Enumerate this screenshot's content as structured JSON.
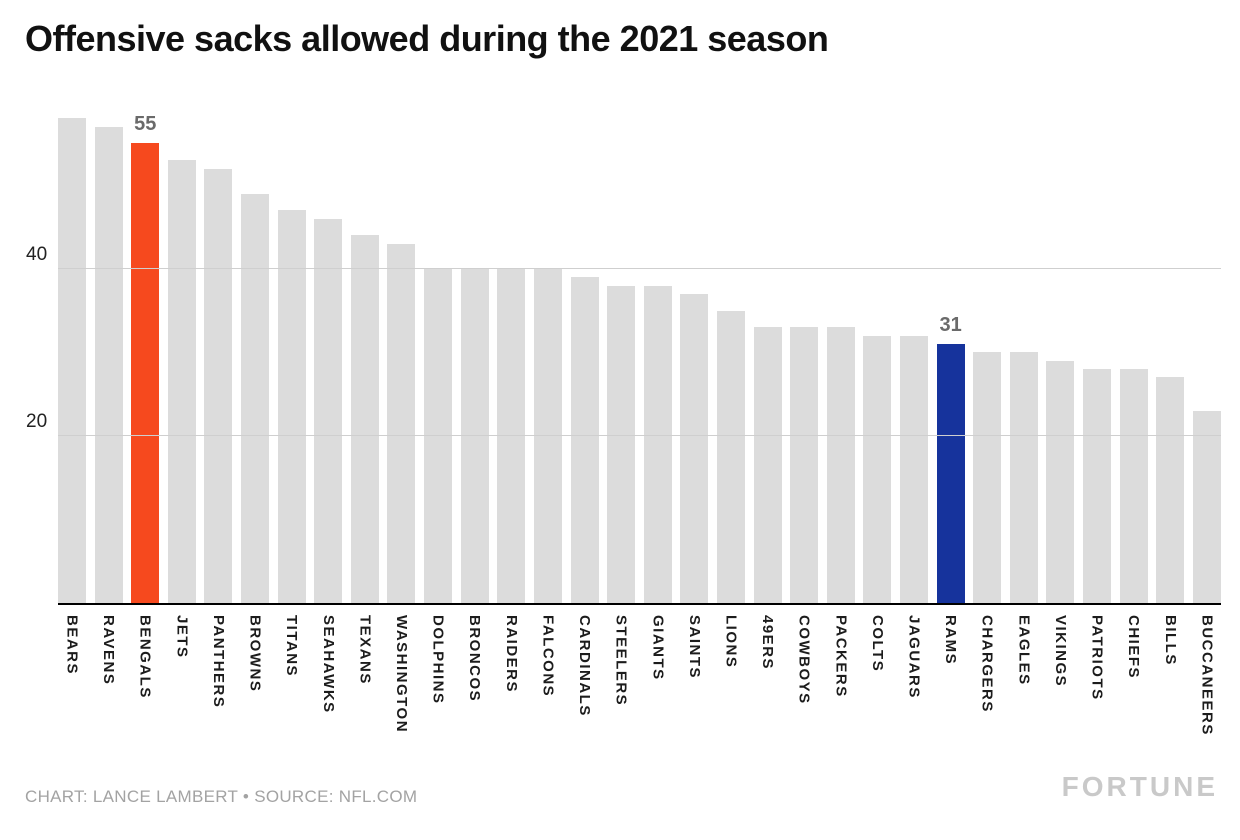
{
  "title": "Offensive sacks allowed during the 2021 season",
  "footer": {
    "credit": "CHART: LANCE LAMBERT • SOURCE: NFL.COM",
    "brand": "FORTUNE"
  },
  "chart_data": {
    "type": "bar",
    "title": "Offensive sacks allowed during the 2021 season",
    "xlabel": "",
    "ylabel": "",
    "ylim": [
      0,
      60.8
    ],
    "yticks": [
      20,
      40
    ],
    "grid": true,
    "legend": "none",
    "default_bar_color": "#dcdcdc",
    "gridline_color": "#cfcfcf",
    "categories": [
      "BEARS",
      "RAVENS",
      "BENGALS",
      "JETS",
      "PANTHERS",
      "BROWNS",
      "TITANS",
      "SEAHAWKS",
      "TEXANS",
      "WASHINGTON",
      "DOLPHINS",
      "BRONCOS",
      "RAIDERS",
      "FALCONS",
      "CARDINALS",
      "STEELERS",
      "GIANTS",
      "SAINTS",
      "LIONS",
      "49ERS",
      "COWBOYS",
      "PACKERS",
      "COLTS",
      "JAGUARS",
      "RAMS",
      "CHARGERS",
      "EAGLES",
      "VIKINGS",
      "PATRIOTS",
      "CHIEFS",
      "BILLS",
      "BUCCANEERS"
    ],
    "values": [
      58,
      57,
      55,
      53,
      52,
      49,
      47,
      46,
      44,
      43,
      40,
      40,
      40,
      40,
      39,
      38,
      38,
      37,
      35,
      33,
      33,
      33,
      32,
      32,
      31,
      30,
      30,
      29,
      28,
      28,
      27,
      23
    ],
    "highlights": [
      {
        "category": "BENGALS",
        "value": 55,
        "color": "#f6491e",
        "data_label": "55"
      },
      {
        "category": "RAMS",
        "value": 31,
        "color": "#16339c",
        "data_label": "31"
      }
    ]
  }
}
